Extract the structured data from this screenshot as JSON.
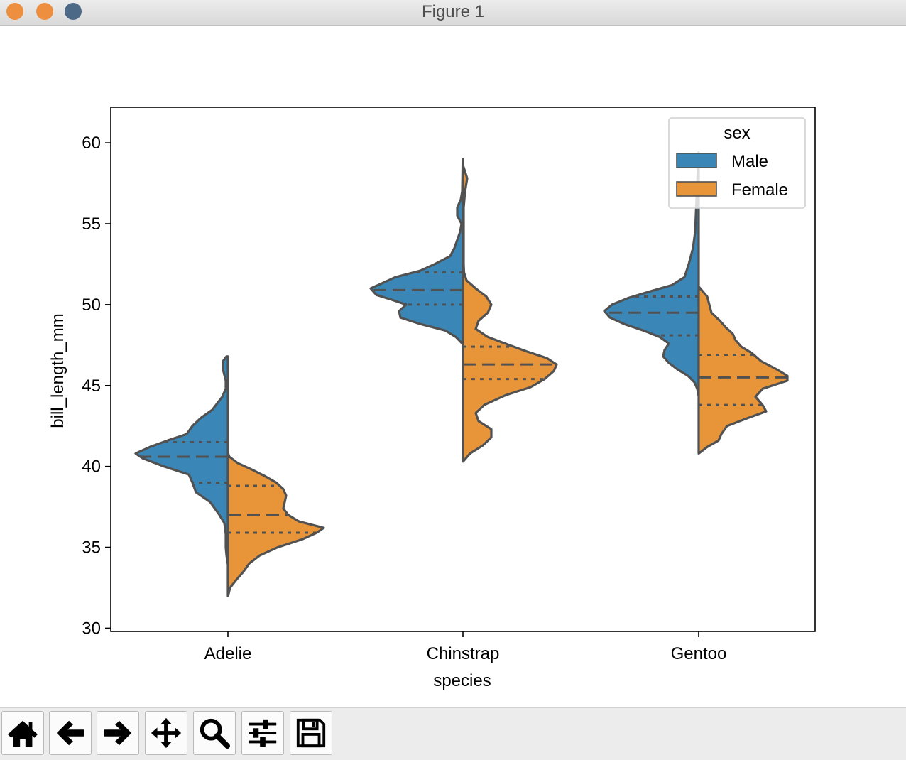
{
  "window": {
    "title": "Figure 1",
    "controls": {
      "close_color": "#ee8f3f",
      "minimize_color": "#ee8f3f",
      "zoom_color": "#4c6a87"
    }
  },
  "toolbar": {
    "buttons": [
      {
        "id": "home",
        "icon": "home-icon"
      },
      {
        "id": "back",
        "icon": "arrow-left-icon"
      },
      {
        "id": "forward",
        "icon": "arrow-right-icon"
      },
      {
        "id": "pan",
        "icon": "move-arrows-icon"
      },
      {
        "id": "zoom",
        "icon": "magnifier-icon"
      },
      {
        "id": "configure",
        "icon": "sliders-icon"
      },
      {
        "id": "save",
        "icon": "floppy-disk-icon"
      }
    ]
  },
  "chart_data": {
    "type": "violin",
    "split": true,
    "inner": "quartile",
    "xlabel": "species",
    "ylabel": "bill_length_mm",
    "categories": [
      "Adelie",
      "Chinstrap",
      "Gentoo"
    ],
    "ylim": [
      29.8,
      62.2
    ],
    "yticks": [
      30,
      35,
      40,
      45,
      50,
      55,
      60
    ],
    "grid": false,
    "legend": {
      "title": "sex",
      "placement": "top-right"
    },
    "series": [
      {
        "name": "Male",
        "color": "#3a87b7",
        "side": "left",
        "violins": [
          {
            "category": "Adelie",
            "ymin": 34.0,
            "ymax": 46.8,
            "quartiles": [
              39.0,
              40.6,
              41.5
            ],
            "profile": [
              [
                34.0,
                0.3
              ],
              [
                34.5,
                2
              ],
              [
                35.0,
                3
              ],
              [
                35.8,
                3
              ],
              [
                36.5,
                5
              ],
              [
                37.0,
                12
              ],
              [
                37.8,
                25
              ],
              [
                38.4,
                45
              ],
              [
                39.0,
                50
              ],
              [
                39.5,
                55
              ],
              [
                40.0,
                90
              ],
              [
                40.5,
                120
              ],
              [
                40.8,
                130
              ],
              [
                41.2,
                110
              ],
              [
                41.6,
                85
              ],
              [
                42.0,
                58
              ],
              [
                42.5,
                50
              ],
              [
                43.0,
                38
              ],
              [
                43.5,
                22
              ],
              [
                44.3,
                8
              ],
              [
                44.8,
                3
              ],
              [
                45.3,
                3
              ],
              [
                46.0,
                7
              ],
              [
                46.5,
                7
              ],
              [
                46.8,
                2
              ]
            ]
          },
          {
            "category": "Chinstrap",
            "ymin": 47.6,
            "ymax": 59.0,
            "quartiles": [
              50.0,
              50.9,
              52.0
            ],
            "profile": [
              [
                47.6,
                1
              ],
              [
                48.0,
                10
              ],
              [
                48.4,
                25
              ],
              [
                48.8,
                60
              ],
              [
                49.2,
                88
              ],
              [
                49.6,
                90
              ],
              [
                50.0,
                80
              ],
              [
                50.3,
                100
              ],
              [
                50.6,
                122
              ],
              [
                51.0,
                130
              ],
              [
                51.3,
                115
              ],
              [
                51.7,
                95
              ],
              [
                52.1,
                60
              ],
              [
                52.5,
                40
              ],
              [
                53.0,
                18
              ],
              [
                53.5,
                12
              ],
              [
                54.0,
                8
              ],
              [
                54.5,
                4
              ],
              [
                55.0,
                2
              ],
              [
                55.5,
                8
              ],
              [
                56.0,
                8
              ],
              [
                56.5,
                3
              ],
              [
                57.0,
                1
              ],
              [
                59.0,
                0.3
              ]
            ]
          },
          {
            "category": "Gentoo",
            "ymin": 44.4,
            "ymax": 59.4,
            "quartiles": [
              48.1,
              49.5,
              50.5
            ],
            "profile": [
              [
                44.4,
                0.3
              ],
              [
                44.8,
                2
              ],
              [
                45.2,
                6
              ],
              [
                45.6,
                15
              ],
              [
                46.0,
                30
              ],
              [
                46.4,
                42
              ],
              [
                46.8,
                50
              ],
              [
                47.2,
                48
              ],
              [
                47.6,
                42
              ],
              [
                48.0,
                55
              ],
              [
                48.4,
                78
              ],
              [
                48.8,
                105
              ],
              [
                49.2,
                125
              ],
              [
                49.6,
                133
              ],
              [
                50.0,
                122
              ],
              [
                50.4,
                100
              ],
              [
                50.8,
                70
              ],
              [
                51.2,
                38
              ],
              [
                51.7,
                20
              ],
              [
                52.5,
                14
              ],
              [
                53.5,
                8
              ],
              [
                54.5,
                5
              ],
              [
                55.5,
                4
              ],
              [
                56.5,
                3
              ],
              [
                57.5,
                2
              ],
              [
                58.5,
                1
              ],
              [
                59.4,
                0.2
              ]
            ]
          }
        ]
      },
      {
        "name": "Female",
        "color": "#e8953a",
        "side": "right",
        "violins": [
          {
            "category": "Adelie",
            "ymin": 32.0,
            "ymax": 40.8,
            "quartiles": [
              35.9,
              37.0,
              38.8
            ],
            "profile": [
              [
                32.0,
                0.2
              ],
              [
                32.5,
                3
              ],
              [
                33.0,
                12
              ],
              [
                33.5,
                22
              ],
              [
                34.0,
                30
              ],
              [
                34.5,
                45
              ],
              [
                35.0,
                70
              ],
              [
                35.5,
                105
              ],
              [
                35.9,
                125
              ],
              [
                36.2,
                135
              ],
              [
                36.6,
                100
              ],
              [
                37.0,
                85
              ],
              [
                37.4,
                78
              ],
              [
                37.8,
                80
              ],
              [
                38.2,
                82
              ],
              [
                38.6,
                78
              ],
              [
                39.0,
                68
              ],
              [
                39.4,
                52
              ],
              [
                39.8,
                34
              ],
              [
                40.2,
                14
              ],
              [
                40.6,
                2
              ],
              [
                40.8,
                0.3
              ]
            ]
          },
          {
            "category": "Chinstrap",
            "ymin": 40.3,
            "ymax": 58.5,
            "quartiles": [
              45.4,
              46.3,
              47.4
            ],
            "profile": [
              [
                40.3,
                0.2
              ],
              [
                40.8,
                10
              ],
              [
                41.3,
                28
              ],
              [
                41.8,
                40
              ],
              [
                42.3,
                40
              ],
              [
                42.8,
                22
              ],
              [
                43.3,
                18
              ],
              [
                43.8,
                30
              ],
              [
                44.4,
                60
              ],
              [
                44.9,
                95
              ],
              [
                45.4,
                115
              ],
              [
                45.9,
                128
              ],
              [
                46.3,
                132
              ],
              [
                46.7,
                118
              ],
              [
                47.1,
                90
              ],
              [
                47.5,
                65
              ],
              [
                48.0,
                35
              ],
              [
                48.5,
                18
              ],
              [
                49.0,
                22
              ],
              [
                49.5,
                35
              ],
              [
                50.0,
                40
              ],
              [
                50.5,
                33
              ],
              [
                51.0,
                18
              ],
              [
                51.5,
                5
              ],
              [
                52.0,
                1.5
              ],
              [
                52.5,
                1
              ],
              [
                56.0,
                1
              ],
              [
                57.0,
                3
              ],
              [
                57.8,
                6
              ],
              [
                58.5,
                1
              ]
            ]
          },
          {
            "category": "Gentoo",
            "ymin": 40.8,
            "ymax": 51.1,
            "quartiles": [
              43.8,
              45.5,
              46.9
            ],
            "profile": [
              [
                40.8,
                0.2
              ],
              [
                41.2,
                12
              ],
              [
                41.6,
                28
              ],
              [
                42.0,
                32
              ],
              [
                42.5,
                40
              ],
              [
                43.0,
                70
              ],
              [
                43.4,
                95
              ],
              [
                43.8,
                90
              ],
              [
                44.3,
                80
              ],
              [
                44.8,
                90
              ],
              [
                45.3,
                125
              ],
              [
                45.6,
                125
              ],
              [
                46.0,
                110
              ],
              [
                46.5,
                88
              ],
              [
                47.0,
                75
              ],
              [
                47.4,
                60
              ],
              [
                47.8,
                52
              ],
              [
                48.2,
                48
              ],
              [
                48.6,
                38
              ],
              [
                49.0,
                30
              ],
              [
                49.5,
                18
              ],
              [
                50.0,
                15
              ],
              [
                50.5,
                12
              ],
              [
                51.1,
                0.3
              ]
            ]
          }
        ]
      }
    ]
  }
}
